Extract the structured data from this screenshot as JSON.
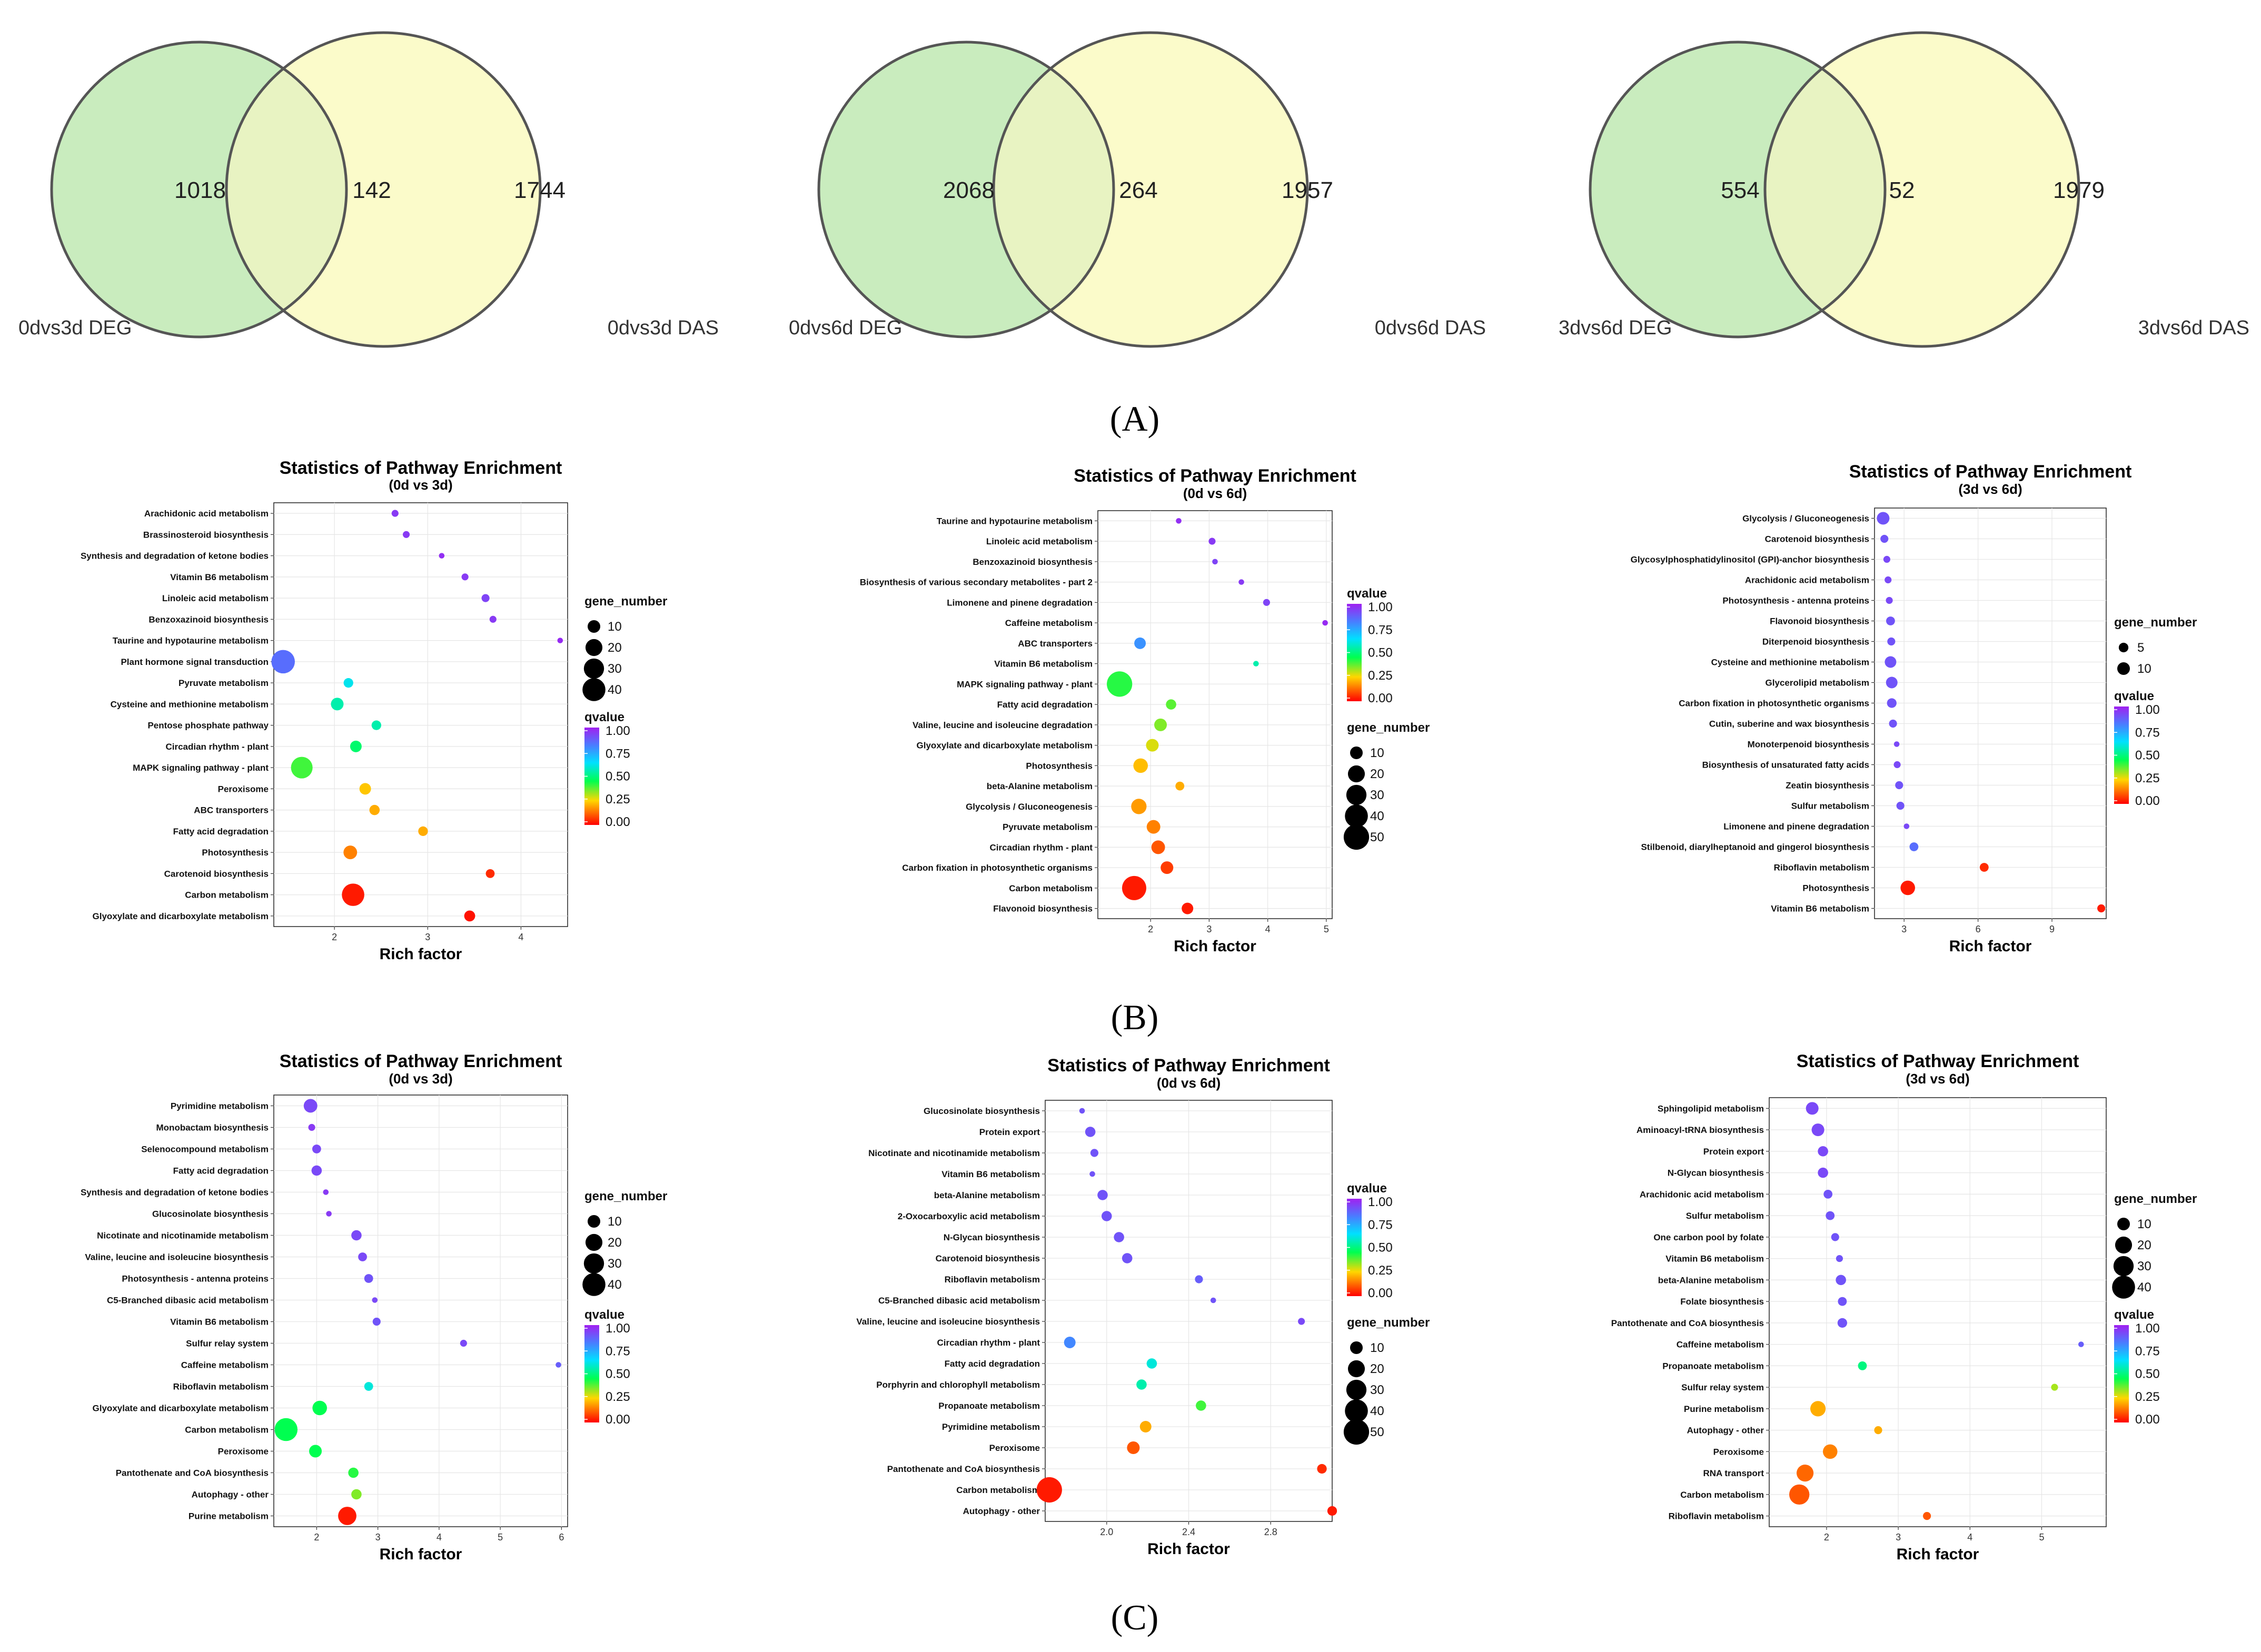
{
  "venn": [
    {
      "left_value": "1018",
      "intersect_value": "142",
      "right_value": "1744",
      "left_label": "0dvs3d DEG",
      "right_label": "0dvs3d DAS"
    },
    {
      "left_value": "2068",
      "intersect_value": "264",
      "right_value": "1957",
      "left_label": "0dvs6d DEG",
      "right_label": "0dvs6d DAS"
    },
    {
      "left_value": "554",
      "intersect_value": "52",
      "right_value": "1979",
      "left_label": "3dvs6d DEG",
      "right_label": "3dvs6d DAS"
    }
  ],
  "panel_labels": {
    "A": "(A)",
    "B": "(B)",
    "C": "(C)"
  },
  "legend_text": {
    "gene_number": "gene_number",
    "qvalue": "qvalue"
  },
  "colors": {
    "venn_left_fill": "#c9ecbe",
    "venn_right_fill": "#fbfbca",
    "venn_overlap_fill": "#e8f3c2",
    "circle_stroke": "#555555",
    "grid": "#e6e6e6"
  },
  "chart_data": [
    {
      "type": "scatter",
      "title": "Statistics of Pathway Enrichment",
      "subtitle": "(0d vs 3d)",
      "xlabel": "Rich factor",
      "xlim": [
        1.35,
        4.5
      ],
      "xticks": [
        2,
        3,
        4
      ],
      "categories": [
        "Arachidonic acid metabolism",
        "Brassinosteroid biosynthesis",
        "Synthesis and degradation of ketone bodies",
        "Vitamin B6 metabolism",
        "Linoleic acid metabolism",
        "Benzoxazinoid biosynthesis",
        "Taurine and hypotaurine metabolism",
        "Plant hormone signal transduction",
        "Pyruvate metabolism",
        "Cysteine and methionine metabolism",
        "Pentose phosphate pathway",
        "Circadian rhythm - plant",
        "MAPK signaling pathway - plant",
        "Peroxisome",
        "ABC transporters",
        "Fatty acid degradation",
        "Photosynthesis",
        "Carotenoid biosynthesis",
        "Carbon metabolism",
        "Glyoxylate and dicarboxylate metabolism"
      ],
      "rich_factor": [
        2.65,
        2.77,
        3.15,
        3.4,
        3.62,
        3.7,
        4.42,
        1.45,
        2.15,
        2.03,
        2.45,
        2.23,
        1.65,
        2.33,
        2.43,
        2.95,
        2.17,
        3.67,
        2.2,
        3.45
      ],
      "gene_number": [
        2,
        2,
        1,
        2,
        3,
        2,
        1,
        42,
        5,
        10,
        5,
        8,
        35,
        8,
        6,
        5,
        12,
        4,
        38,
        7
      ],
      "qvalue": [
        0.95,
        0.95,
        0.97,
        0.95,
        0.93,
        0.95,
        0.98,
        0.85,
        0.62,
        0.55,
        0.55,
        0.48,
        0.4,
        0.23,
        0.2,
        0.2,
        0.15,
        0.05,
        0.03,
        0.02
      ],
      "size_legend": [
        10,
        20,
        30,
        40
      ],
      "color_legend": [
        "1.00",
        "0.75",
        "0.50",
        "0.25",
        "0.00"
      ],
      "legend_order": "size-first"
    },
    {
      "type": "scatter",
      "title": "Statistics of Pathway Enrichment",
      "subtitle": "(0d vs 6d)",
      "xlabel": "Rich factor",
      "xlim": [
        1.1,
        5.1
      ],
      "xticks": [
        2,
        3,
        4,
        5
      ],
      "categories": [
        "Taurine and hypotaurine metabolism",
        "Linoleic acid metabolism",
        "Benzoxazinoid biosynthesis",
        "Biosynthesis of various secondary metabolites - part 2",
        "Limonene and pinene degradation",
        "Caffeine metabolism",
        "ABC transporters",
        "Vitamin B6 metabolism",
        "MAPK signaling pathway - plant",
        "Fatty acid degradation",
        "Valine, leucine and isoleucine degradation",
        "Glyoxylate and dicarboxylate metabolism",
        "Photosynthesis",
        "beta-Alanine metabolism",
        "Glycolysis / Gluconeogenesis",
        "Pyruvate metabolism",
        "Circadian rhythm - plant",
        "Carbon fixation in photosynthetic organisms",
        "Carbon metabolism",
        "Flavonoid biosynthesis"
      ],
      "rich_factor": [
        2.48,
        3.05,
        3.1,
        3.55,
        3.98,
        4.98,
        1.82,
        3.8,
        1.47,
        2.35,
        2.17,
        2.03,
        1.83,
        2.5,
        1.8,
        2.05,
        2.13,
        2.28,
        1.72,
        2.63
      ],
      "gene_number": [
        1,
        2,
        1,
        1,
        2,
        1,
        8,
        1,
        50,
        6,
        10,
        10,
        14,
        4,
        16,
        12,
        12,
        10,
        45,
        8
      ],
      "qvalue": [
        0.97,
        0.95,
        0.93,
        0.95,
        0.93,
        0.98,
        0.78,
        0.55,
        0.42,
        0.38,
        0.35,
        0.28,
        0.22,
        0.2,
        0.18,
        0.15,
        0.1,
        0.07,
        0.03,
        0.03
      ],
      "size_legend": [
        10,
        20,
        30,
        40,
        50
      ],
      "color_legend": [
        "1.00",
        "0.75",
        "0.50",
        "0.25",
        "0.00"
      ],
      "legend_order": "color-first"
    },
    {
      "type": "scatter",
      "title": "Statistics of Pathway Enrichment",
      "subtitle": "(3d vs 6d)",
      "xlabel": "Rich factor",
      "xlim": [
        1.8,
        11.2
      ],
      "xticks": [
        3,
        6,
        9
      ],
      "categories": [
        "Glycolysis / Gluconeogenesis",
        "Carotenoid biosynthesis",
        "Glycosylphosphatidylinositol (GPI)-anchor biosynthesis",
        "Arachidonic acid metabolism",
        "Photosynthesis - antenna proteins",
        "Flavonoid biosynthesis",
        "Diterpenoid biosynthesis",
        "Cysteine and methionine metabolism",
        "Glycerolipid metabolism",
        "Carbon fixation in photosynthetic organisms",
        "Cutin, suberine and wax biosynthesis",
        "Monoterpenoid biosynthesis",
        "Biosynthesis of unsaturated fatty acids",
        "Zeatin biosynthesis",
        "Sulfur metabolism",
        "Limonene and pinene degradation",
        "Stilbenoid, diarylheptanoid and gingerol biosynthesis",
        "Riboflavin metabolism",
        "Photosynthesis",
        "Vitamin B6 metabolism"
      ],
      "rich_factor": [
        2.15,
        2.2,
        2.3,
        2.35,
        2.4,
        2.45,
        2.48,
        2.45,
        2.5,
        2.5,
        2.55,
        2.7,
        2.72,
        2.8,
        2.85,
        3.1,
        3.4,
        6.25,
        3.15,
        11.0
      ],
      "gene_number": [
        10,
        3,
        2,
        2,
        2,
        4,
        3,
        8,
        8,
        5,
        3,
        1,
        2,
        3,
        3,
        1,
        4,
        4,
        14,
        3
      ],
      "qvalue": [
        0.9,
        0.9,
        0.92,
        0.92,
        0.92,
        0.9,
        0.9,
        0.9,
        0.9,
        0.9,
        0.9,
        0.92,
        0.92,
        0.9,
        0.9,
        0.92,
        0.85,
        0.05,
        0.03,
        0.03
      ],
      "size_legend": [
        5,
        10
      ],
      "color_legend": [
        "1.00",
        "0.75",
        "0.50",
        "0.25",
        "0.00"
      ],
      "legend_order": "size-first"
    },
    {
      "type": "scatter",
      "title": "Statistics of Pathway Enrichment",
      "subtitle": "(0d vs 3d)",
      "xlabel": "Rich factor",
      "xlim": [
        1.3,
        6.1
      ],
      "xticks": [
        2,
        3,
        4,
        5,
        6
      ],
      "categories": [
        "Pyrimidine metabolism",
        "Monobactam biosynthesis",
        "Selenocompound metabolism",
        "Fatty acid degradation",
        "Synthesis and degradation of ketone bodies",
        "Glucosinolate biosynthesis",
        "Nicotinate and nicotinamide metabolism",
        "Valine, leucine and isoleucine biosynthesis",
        "Photosynthesis - antenna proteins",
        "C5-Branched dibasic acid metabolism",
        "Vitamin B6 metabolism",
        "Sulfur relay system",
        "Caffeine metabolism",
        "Riboflavin metabolism",
        "Glyoxylate and dicarboxylate metabolism",
        "Carbon metabolism",
        "Peroxisome",
        "Pantothenate and CoA biosynthesis",
        "Autophagy - other",
        "Purine metabolism"
      ],
      "rich_factor": [
        1.9,
        1.92,
        2.0,
        2.0,
        2.15,
        2.2,
        2.65,
        2.75,
        2.85,
        2.95,
        2.98,
        4.4,
        5.95,
        2.85,
        2.05,
        1.5,
        1.98,
        2.6,
        2.65,
        2.5
      ],
      "gene_number": [
        12,
        2,
        4,
        6,
        1,
        1,
        6,
        4,
        4,
        1,
        3,
        2,
        1,
        4,
        14,
        40,
        10,
        6,
        6,
        24
      ],
      "qvalue": [
        0.92,
        0.95,
        0.92,
        0.92,
        0.95,
        0.95,
        0.92,
        0.92,
        0.9,
        0.92,
        0.9,
        0.92,
        0.88,
        0.6,
        0.45,
        0.45,
        0.45,
        0.42,
        0.35,
        0.03
      ],
      "size_legend": [
        10,
        20,
        30,
        40
      ],
      "color_legend": [
        "1.00",
        "0.75",
        "0.50",
        "0.25",
        "0.00"
      ],
      "legend_order": "size-first"
    },
    {
      "type": "scatter",
      "title": "Statistics of Pathway Enrichment",
      "subtitle": "(0d vs 6d)",
      "xlabel": "Rich factor",
      "xlim": [
        1.7,
        3.1
      ],
      "xticks": [
        "2.0",
        "2.4",
        "2.8"
      ],
      "categories": [
        "Glucosinolate biosynthesis",
        "Protein export",
        "Nicotinate and nicotinamide metabolism",
        "Vitamin B6 metabolism",
        "beta-Alanine metabolism",
        "2-Oxocarboxylic acid metabolism",
        "N-Glycan biosynthesis",
        "Carotenoid biosynthesis",
        "Riboflavin metabolism",
        "C5-Branched dibasic acid metabolism",
        "Valine, leucine and isoleucine biosynthesis",
        "Circadian rhythm - plant",
        "Fatty acid degradation",
        "Porphyrin and chlorophyll metabolism",
        "Propanoate metabolism",
        "Pyrimidine metabolism",
        "Peroxisome",
        "Pantothenate and CoA biosynthesis",
        "Carbon metabolism",
        "Autophagy - other"
      ],
      "rich_factor": [
        1.88,
        1.92,
        1.94,
        1.93,
        1.98,
        2.0,
        2.06,
        2.1,
        2.45,
        2.52,
        2.95,
        1.82,
        2.22,
        2.17,
        2.46,
        2.19,
        2.13,
        3.05,
        1.72,
        3.1
      ],
      "gene_number": [
        1,
        6,
        3,
        1,
        6,
        6,
        6,
        6,
        3,
        1,
        2,
        8,
        6,
        6,
        6,
        8,
        10,
        5,
        50,
        5
      ],
      "qvalue": [
        0.9,
        0.9,
        0.9,
        0.9,
        0.9,
        0.9,
        0.9,
        0.9,
        0.88,
        0.9,
        0.92,
        0.8,
        0.6,
        0.55,
        0.4,
        0.2,
        0.1,
        0.05,
        0.03,
        0.03
      ],
      "size_legend": [
        10,
        20,
        30,
        40,
        50
      ],
      "color_legend": [
        "1.00",
        "0.75",
        "0.50",
        "0.25",
        "0.00"
      ],
      "legend_order": "color-first"
    },
    {
      "type": "scatter",
      "title": "Statistics of Pathway Enrichment",
      "subtitle": "(3d vs 6d)",
      "xlabel": "Rich factor",
      "xlim": [
        1.2,
        5.9
      ],
      "xticks": [
        2,
        3,
        4,
        5
      ],
      "categories": [
        "Sphingolipid metabolism",
        "Aminoacyl-tRNA biosynthesis",
        "Protein export",
        "N-Glycan biosynthesis",
        "Arachidonic acid metabolism",
        "Sulfur metabolism",
        "One carbon pool by folate",
        "Vitamin B6 metabolism",
        "beta-Alanine metabolism",
        "Folate biosynthesis",
        "Pantothenate and CoA biosynthesis",
        "Caffeine metabolism",
        "Propanoate metabolism",
        "Sulfur relay system",
        "Purine metabolism",
        "Autophagy - other",
        "Peroxisome",
        "RNA transport",
        "Carbon metabolism",
        "Riboflavin metabolism"
      ],
      "rich_factor": [
        1.8,
        1.88,
        1.95,
        1.95,
        2.02,
        2.05,
        2.12,
        2.18,
        2.2,
        2.22,
        2.22,
        5.55,
        2.5,
        5.18,
        1.88,
        2.72,
        2.05,
        1.7,
        1.62,
        3.4
      ],
      "gene_number": [
        10,
        10,
        6,
        6,
        4,
        4,
        3,
        2,
        6,
        4,
        5,
        1,
        4,
        2,
        16,
        3,
        14,
        20,
        30,
        3
      ],
      "qvalue": [
        0.92,
        0.92,
        0.92,
        0.92,
        0.9,
        0.9,
        0.9,
        0.9,
        0.9,
        0.9,
        0.9,
        0.88,
        0.5,
        0.32,
        0.2,
        0.2,
        0.15,
        0.12,
        0.1,
        0.1
      ],
      "size_legend": [
        10,
        20,
        30,
        40
      ],
      "color_legend": [
        "1.00",
        "0.75",
        "0.50",
        "0.25",
        "0.00"
      ],
      "legend_order": "size-first"
    }
  ]
}
